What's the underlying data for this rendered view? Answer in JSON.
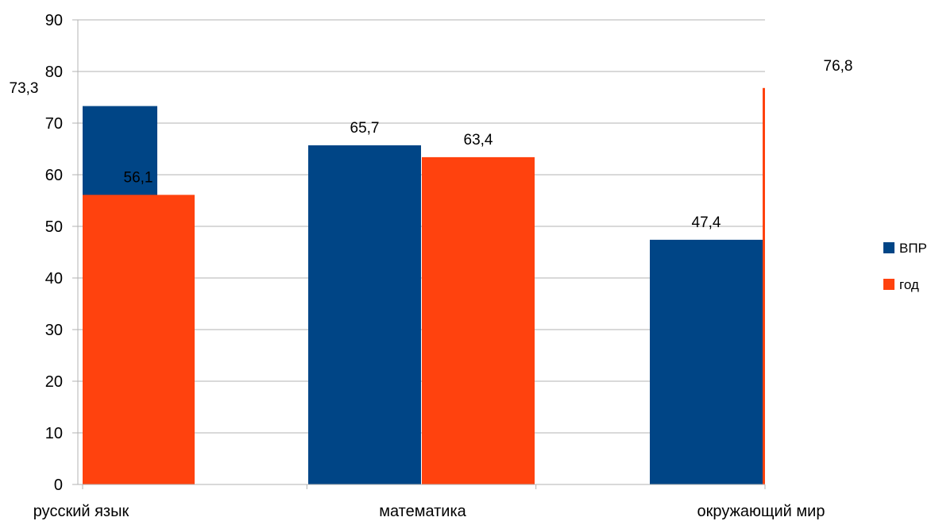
{
  "chart_data": {
    "type": "bar",
    "categories": [
      "русский язык",
      "математика",
      "окружающий мир"
    ],
    "series": [
      {
        "name": "ВПР",
        "color": "#004586",
        "values": [
          73.3,
          65.7,
          47.4
        ],
        "labels": [
          "73,3",
          "65,7",
          "47,4"
        ]
      },
      {
        "name": "год",
        "color": "#ff420e",
        "values": [
          56.1,
          63.4,
          76.8
        ],
        "labels": [
          "56,1",
          "63,4",
          "76,8"
        ]
      }
    ],
    "y_ticks": [
      "0",
      "10",
      "20",
      "30",
      "40",
      "50",
      "60",
      "70",
      "80",
      "90"
    ],
    "ylim": [
      0,
      90
    ],
    "grid": true,
    "legend_position": "right"
  }
}
